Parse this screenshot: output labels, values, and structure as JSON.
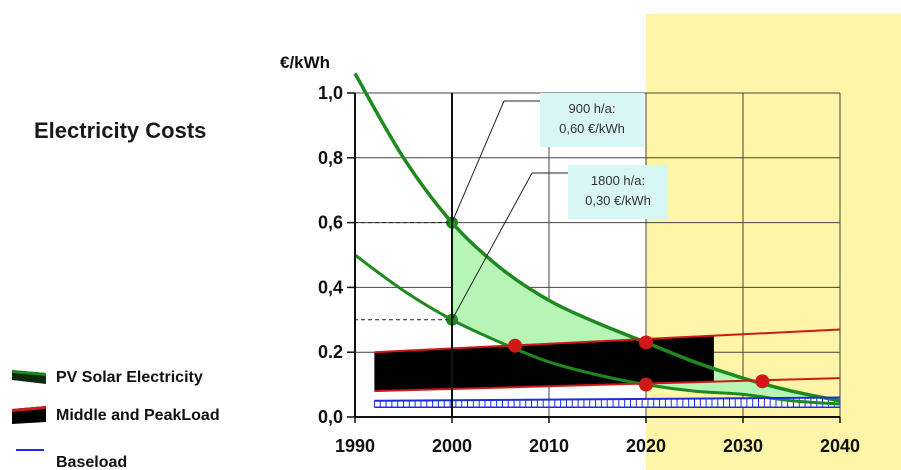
{
  "chart_data": {
    "type": "area",
    "title": "Electricity Costs",
    "ylabel": "€/kWh",
    "xlabel": "",
    "xlim": [
      1990,
      2040
    ],
    "ylim": [
      0,
      1.0
    ],
    "x_ticks": [
      "1990",
      "2000",
      "2010",
      "2020",
      "2030",
      "2040"
    ],
    "y_ticks": [
      "0,0",
      "0.2",
      "0,4",
      "0,6",
      "0,8",
      "1,0"
    ],
    "grid": true,
    "legend_position": "bottom-left",
    "highlight_region": {
      "x_from": 2020,
      "x_to": 2040,
      "color": "#fff5a8"
    },
    "series": [
      {
        "name": "PV Solar Electricity",
        "color": "#1e8a1e",
        "fill": "#b6f5b6",
        "upper": {
          "x": [
            1990,
            1995,
            2000,
            2005,
            2010,
            2015,
            2020,
            2025,
            2030,
            2035,
            2040
          ],
          "y": [
            1.06,
            0.8,
            0.6,
            0.46,
            0.36,
            0.29,
            0.23,
            0.17,
            0.12,
            0.08,
            0.05
          ]
        },
        "lower": {
          "x": [
            1990,
            1995,
            2000,
            2005,
            2010,
            2015,
            2020,
            2025,
            2030,
            2035,
            2040
          ],
          "y": [
            0.5,
            0.39,
            0.3,
            0.23,
            0.17,
            0.13,
            0.1,
            0.08,
            0.07,
            0.05,
            0.04
          ]
        },
        "markers": [
          {
            "x": 2000,
            "y": 0.6
          },
          {
            "x": 2000,
            "y": 0.3
          }
        ]
      },
      {
        "name": "Middle and PeakLoad",
        "color": "#d01818",
        "fill": "#000000",
        "upper": {
          "x": [
            1992,
            2040
          ],
          "y": [
            0.2,
            0.27
          ]
        },
        "lower": {
          "x": [
            1992,
            2040
          ],
          "y": [
            0.08,
            0.12
          ]
        },
        "fill_until_x": 2027,
        "markers": [
          {
            "x": 2006.5,
            "y": 0.22
          },
          {
            "x": 2020,
            "y": 0.23
          },
          {
            "x": 2020,
            "y": 0.1
          },
          {
            "x": 2032,
            "y": 0.11
          }
        ]
      },
      {
        "name": "Baseload",
        "color": "#1a2ee0",
        "upper": {
          "x": [
            1992,
            2040
          ],
          "y": [
            0.05,
            0.06
          ]
        },
        "lower": {
          "x": [
            1992,
            2040
          ],
          "y": [
            0.03,
            0.03
          ]
        }
      }
    ],
    "annotations": [
      {
        "lines": [
          "900 h/a:",
          "0,60 €/kWh"
        ],
        "x": 2000,
        "y": 0.6
      },
      {
        "lines": [
          "1800 h/a:",
          "0,30 €/kWh"
        ],
        "x": 2000,
        "y": 0.3
      }
    ]
  }
}
